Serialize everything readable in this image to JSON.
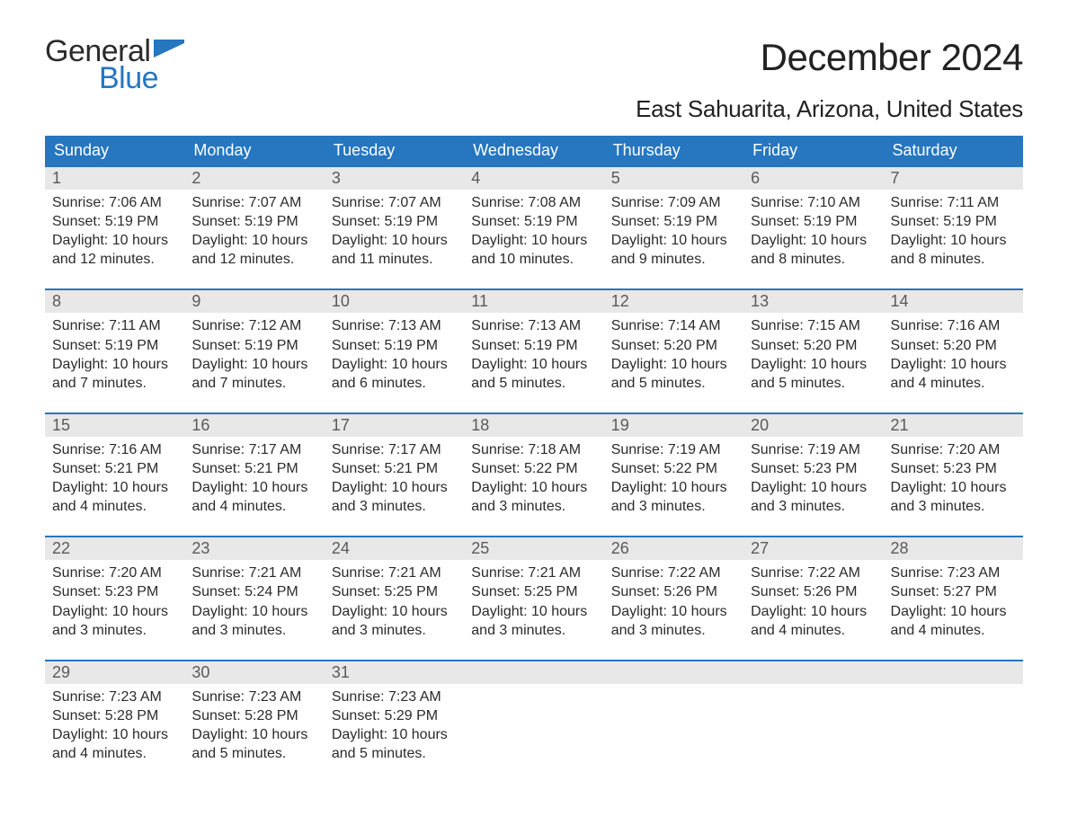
{
  "logo": {
    "line1": "General",
    "line2": "Blue",
    "flag_color": "#2676c0"
  },
  "title": "December 2024",
  "location": "East Sahuarita, Arizona, United States",
  "colors": {
    "header_bg": "#2676c0",
    "header_text": "#ffffff",
    "daynum_bg": "#e8e8e8",
    "daynum_text": "#5a5a5a",
    "body_text": "#2b2b2b",
    "week_border": "#2676c0",
    "page_bg": "#ffffff"
  },
  "fonts": {
    "title_size": 42,
    "location_size": 26,
    "header_size": 18,
    "body_size": 16
  },
  "day_headers": [
    "Sunday",
    "Monday",
    "Tuesday",
    "Wednesday",
    "Thursday",
    "Friday",
    "Saturday"
  ],
  "weeks": [
    [
      {
        "n": "1",
        "sr": "Sunrise: 7:06 AM",
        "ss": "Sunset: 5:19 PM",
        "d1": "Daylight: 10 hours",
        "d2": "and 12 minutes."
      },
      {
        "n": "2",
        "sr": "Sunrise: 7:07 AM",
        "ss": "Sunset: 5:19 PM",
        "d1": "Daylight: 10 hours",
        "d2": "and 12 minutes."
      },
      {
        "n": "3",
        "sr": "Sunrise: 7:07 AM",
        "ss": "Sunset: 5:19 PM",
        "d1": "Daylight: 10 hours",
        "d2": "and 11 minutes."
      },
      {
        "n": "4",
        "sr": "Sunrise: 7:08 AM",
        "ss": "Sunset: 5:19 PM",
        "d1": "Daylight: 10 hours",
        "d2": "and 10 minutes."
      },
      {
        "n": "5",
        "sr": "Sunrise: 7:09 AM",
        "ss": "Sunset: 5:19 PM",
        "d1": "Daylight: 10 hours",
        "d2": "and 9 minutes."
      },
      {
        "n": "6",
        "sr": "Sunrise: 7:10 AM",
        "ss": "Sunset: 5:19 PM",
        "d1": "Daylight: 10 hours",
        "d2": "and 8 minutes."
      },
      {
        "n": "7",
        "sr": "Sunrise: 7:11 AM",
        "ss": "Sunset: 5:19 PM",
        "d1": "Daylight: 10 hours",
        "d2": "and 8 minutes."
      }
    ],
    [
      {
        "n": "8",
        "sr": "Sunrise: 7:11 AM",
        "ss": "Sunset: 5:19 PM",
        "d1": "Daylight: 10 hours",
        "d2": "and 7 minutes."
      },
      {
        "n": "9",
        "sr": "Sunrise: 7:12 AM",
        "ss": "Sunset: 5:19 PM",
        "d1": "Daylight: 10 hours",
        "d2": "and 7 minutes."
      },
      {
        "n": "10",
        "sr": "Sunrise: 7:13 AM",
        "ss": "Sunset: 5:19 PM",
        "d1": "Daylight: 10 hours",
        "d2": "and 6 minutes."
      },
      {
        "n": "11",
        "sr": "Sunrise: 7:13 AM",
        "ss": "Sunset: 5:19 PM",
        "d1": "Daylight: 10 hours",
        "d2": "and 5 minutes."
      },
      {
        "n": "12",
        "sr": "Sunrise: 7:14 AM",
        "ss": "Sunset: 5:20 PM",
        "d1": "Daylight: 10 hours",
        "d2": "and 5 minutes."
      },
      {
        "n": "13",
        "sr": "Sunrise: 7:15 AM",
        "ss": "Sunset: 5:20 PM",
        "d1": "Daylight: 10 hours",
        "d2": "and 5 minutes."
      },
      {
        "n": "14",
        "sr": "Sunrise: 7:16 AM",
        "ss": "Sunset: 5:20 PM",
        "d1": "Daylight: 10 hours",
        "d2": "and 4 minutes."
      }
    ],
    [
      {
        "n": "15",
        "sr": "Sunrise: 7:16 AM",
        "ss": "Sunset: 5:21 PM",
        "d1": "Daylight: 10 hours",
        "d2": "and 4 minutes."
      },
      {
        "n": "16",
        "sr": "Sunrise: 7:17 AM",
        "ss": "Sunset: 5:21 PM",
        "d1": "Daylight: 10 hours",
        "d2": "and 4 minutes."
      },
      {
        "n": "17",
        "sr": "Sunrise: 7:17 AM",
        "ss": "Sunset: 5:21 PM",
        "d1": "Daylight: 10 hours",
        "d2": "and 3 minutes."
      },
      {
        "n": "18",
        "sr": "Sunrise: 7:18 AM",
        "ss": "Sunset: 5:22 PM",
        "d1": "Daylight: 10 hours",
        "d2": "and 3 minutes."
      },
      {
        "n": "19",
        "sr": "Sunrise: 7:19 AM",
        "ss": "Sunset: 5:22 PM",
        "d1": "Daylight: 10 hours",
        "d2": "and 3 minutes."
      },
      {
        "n": "20",
        "sr": "Sunrise: 7:19 AM",
        "ss": "Sunset: 5:23 PM",
        "d1": "Daylight: 10 hours",
        "d2": "and 3 minutes."
      },
      {
        "n": "21",
        "sr": "Sunrise: 7:20 AM",
        "ss": "Sunset: 5:23 PM",
        "d1": "Daylight: 10 hours",
        "d2": "and 3 minutes."
      }
    ],
    [
      {
        "n": "22",
        "sr": "Sunrise: 7:20 AM",
        "ss": "Sunset: 5:23 PM",
        "d1": "Daylight: 10 hours",
        "d2": "and 3 minutes."
      },
      {
        "n": "23",
        "sr": "Sunrise: 7:21 AM",
        "ss": "Sunset: 5:24 PM",
        "d1": "Daylight: 10 hours",
        "d2": "and 3 minutes."
      },
      {
        "n": "24",
        "sr": "Sunrise: 7:21 AM",
        "ss": "Sunset: 5:25 PM",
        "d1": "Daylight: 10 hours",
        "d2": "and 3 minutes."
      },
      {
        "n": "25",
        "sr": "Sunrise: 7:21 AM",
        "ss": "Sunset: 5:25 PM",
        "d1": "Daylight: 10 hours",
        "d2": "and 3 minutes."
      },
      {
        "n": "26",
        "sr": "Sunrise: 7:22 AM",
        "ss": "Sunset: 5:26 PM",
        "d1": "Daylight: 10 hours",
        "d2": "and 3 minutes."
      },
      {
        "n": "27",
        "sr": "Sunrise: 7:22 AM",
        "ss": "Sunset: 5:26 PM",
        "d1": "Daylight: 10 hours",
        "d2": "and 4 minutes."
      },
      {
        "n": "28",
        "sr": "Sunrise: 7:23 AM",
        "ss": "Sunset: 5:27 PM",
        "d1": "Daylight: 10 hours",
        "d2": "and 4 minutes."
      }
    ],
    [
      {
        "n": "29",
        "sr": "Sunrise: 7:23 AM",
        "ss": "Sunset: 5:28 PM",
        "d1": "Daylight: 10 hours",
        "d2": "and 4 minutes."
      },
      {
        "n": "30",
        "sr": "Sunrise: 7:23 AM",
        "ss": "Sunset: 5:28 PM",
        "d1": "Daylight: 10 hours",
        "d2": "and 5 minutes."
      },
      {
        "n": "31",
        "sr": "Sunrise: 7:23 AM",
        "ss": "Sunset: 5:29 PM",
        "d1": "Daylight: 10 hours",
        "d2": "and 5 minutes."
      },
      null,
      null,
      null,
      null
    ]
  ]
}
